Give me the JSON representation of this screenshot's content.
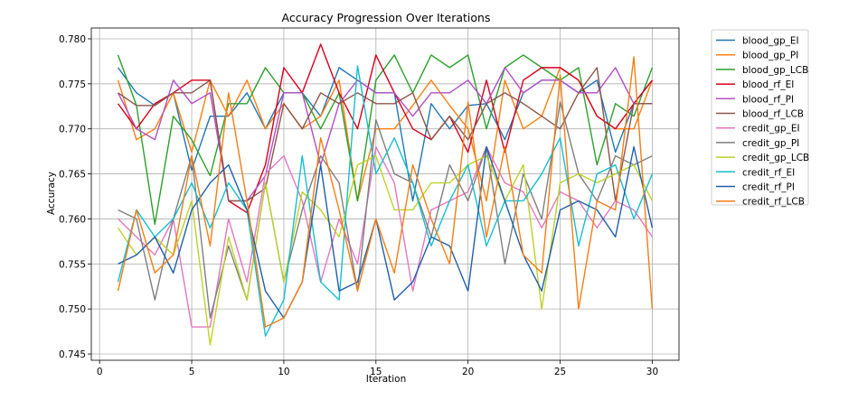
{
  "chart_data": {
    "type": "line",
    "title": "Accuracy Progression Over Iterations",
    "xlabel": "Iteration",
    "ylabel": "Accuracy",
    "xlim": [
      -0.45,
      31.45
    ],
    "ylim": [
      0.7443,
      0.7812
    ],
    "xticks": [
      0,
      5,
      10,
      15,
      20,
      25,
      30
    ],
    "yticks": [
      0.745,
      0.75,
      0.755,
      0.76,
      0.765,
      0.77,
      0.775,
      0.78
    ],
    "grid": true,
    "legend_position": "outside-right",
    "x": [
      1,
      2,
      3,
      4,
      5,
      6,
      7,
      8,
      9,
      10,
      11,
      12,
      13,
      14,
      15,
      16,
      17,
      18,
      19,
      20,
      21,
      22,
      23,
      24,
      25,
      26,
      27,
      28,
      29,
      30
    ],
    "series": [
      {
        "name": "blood_gp_EI",
        "color": "#1f77b4",
        "values": [
          0.7768,
          0.774,
          0.7726,
          0.774,
          0.7654,
          0.7714,
          0.7714,
          0.774,
          0.77,
          0.774,
          0.774,
          0.7714,
          0.7768,
          0.7754,
          0.774,
          0.774,
          0.762,
          0.7728,
          0.77,
          0.7726,
          0.7728,
          0.7688,
          0.774,
          0.7754,
          0.7754,
          0.774,
          0.7754,
          0.7674,
          0.7728,
          0.7754
        ]
      },
      {
        "name": "blood_gp_PI",
        "color": "#ff7f0e",
        "values": [
          0.7754,
          0.7688,
          0.77,
          0.774,
          0.7674,
          0.7754,
          0.7714,
          0.7754,
          0.77,
          0.7728,
          0.77,
          0.7714,
          0.7754,
          0.762,
          0.77,
          0.77,
          0.7726,
          0.7754,
          0.7726,
          0.77,
          0.762,
          0.7754,
          0.77,
          0.7714,
          0.7768,
          0.7754,
          0.7714,
          0.77,
          0.77,
          0.7754
        ]
      },
      {
        "name": "blood_gp_LCB",
        "color": "#2ca02c",
        "values": [
          0.7782,
          0.7726,
          0.7594,
          0.7714,
          0.7688,
          0.7648,
          0.7728,
          0.7728,
          0.7768,
          0.774,
          0.774,
          0.77,
          0.774,
          0.762,
          0.7754,
          0.7782,
          0.774,
          0.7782,
          0.7768,
          0.7782,
          0.77,
          0.7768,
          0.7782,
          0.7768,
          0.7754,
          0.7768,
          0.766,
          0.7728,
          0.7714,
          0.7768
        ]
      },
      {
        "name": "blood_rf_EI",
        "color": "#d6001c",
        "values": [
          0.7728,
          0.77,
          0.7728,
          0.774,
          0.7754,
          0.7754,
          0.762,
          0.7607,
          0.766,
          0.7768,
          0.774,
          0.7794,
          0.774,
          0.77,
          0.7782,
          0.774,
          0.77,
          0.7688,
          0.7714,
          0.7674,
          0.7754,
          0.7674,
          0.7754,
          0.7768,
          0.7768,
          0.7754,
          0.7714,
          0.77,
          0.7728,
          0.7754
        ]
      },
      {
        "name": "blood_rf_PI",
        "color": "#b14fc5",
        "values": [
          0.774,
          0.77,
          0.7688,
          0.7754,
          0.7728,
          0.774,
          0.762,
          0.762,
          0.7648,
          0.774,
          0.774,
          0.766,
          0.7728,
          0.7754,
          0.774,
          0.774,
          0.7714,
          0.774,
          0.774,
          0.7754,
          0.7728,
          0.7768,
          0.774,
          0.7754,
          0.7754,
          0.774,
          0.774,
          0.7768,
          0.7728,
          0.7728
        ]
      },
      {
        "name": "blood_rf_LCB",
        "color": "#8c564b",
        "values": [
          0.774,
          0.7726,
          0.7726,
          0.774,
          0.774,
          0.7754,
          0.762,
          0.762,
          0.7634,
          0.7728,
          0.77,
          0.774,
          0.7728,
          0.774,
          0.7728,
          0.7728,
          0.774,
          0.7688,
          0.7714,
          0.7688,
          0.7728,
          0.774,
          0.7728,
          0.7714,
          0.77,
          0.774,
          0.7768,
          0.762,
          0.7728,
          0.7728
        ]
      },
      {
        "name": "credit_gp_EI",
        "color": "#e377c2",
        "values": [
          0.76,
          0.758,
          0.756,
          0.76,
          0.748,
          0.748,
          0.76,
          0.753,
          0.765,
          0.767,
          0.762,
          0.753,
          0.76,
          0.755,
          0.768,
          0.764,
          0.752,
          0.761,
          0.762,
          0.763,
          0.768,
          0.764,
          0.763,
          0.759,
          0.763,
          0.762,
          0.759,
          0.762,
          0.761,
          0.758
        ]
      },
      {
        "name": "credit_gp_PI",
        "color": "#7f7f7f",
        "values": [
          0.761,
          0.76,
          0.751,
          0.76,
          0.767,
          0.749,
          0.757,
          0.751,
          0.764,
          0.753,
          0.761,
          0.767,
          0.764,
          0.752,
          0.771,
          0.765,
          0.764,
          0.758,
          0.766,
          0.762,
          0.768,
          0.755,
          0.765,
          0.76,
          0.773,
          0.765,
          0.762,
          0.767,
          0.766,
          0.767
        ]
      },
      {
        "name": "credit_gp_LCB",
        "color": "#bcd22a",
        "values": [
          0.759,
          0.756,
          0.758,
          0.756,
          0.762,
          0.746,
          0.758,
          0.751,
          0.764,
          0.753,
          0.763,
          0.761,
          0.758,
          0.766,
          0.767,
          0.761,
          0.761,
          0.764,
          0.764,
          0.766,
          0.767,
          0.762,
          0.766,
          0.75,
          0.764,
          0.765,
          0.764,
          0.765,
          0.766,
          0.762
        ]
      },
      {
        "name": "credit_rf_EI",
        "color": "#17becf",
        "values": [
          0.753,
          0.761,
          0.758,
          0.76,
          0.764,
          0.759,
          0.764,
          0.761,
          0.747,
          0.751,
          0.767,
          0.753,
          0.751,
          0.777,
          0.765,
          0.769,
          0.764,
          0.757,
          0.762,
          0.766,
          0.757,
          0.762,
          0.762,
          0.765,
          0.769,
          0.757,
          0.765,
          0.766,
          0.76,
          0.765
        ]
      },
      {
        "name": "credit_rf_PI",
        "color": "#1f5fa8",
        "values": [
          0.755,
          0.756,
          0.758,
          0.754,
          0.761,
          0.764,
          0.766,
          0.761,
          0.752,
          0.749,
          0.753,
          0.766,
          0.752,
          0.753,
          0.76,
          0.751,
          0.753,
          0.758,
          0.757,
          0.752,
          0.768,
          0.762,
          0.756,
          0.752,
          0.761,
          0.762,
          0.761,
          0.758,
          0.768,
          0.759
        ]
      },
      {
        "name": "credit_rf_LCB",
        "color": "#f47e16",
        "values": [
          0.752,
          0.761,
          0.754,
          0.756,
          0.767,
          0.757,
          0.774,
          0.762,
          0.748,
          0.749,
          0.753,
          0.769,
          0.761,
          0.752,
          0.76,
          0.754,
          0.766,
          0.76,
          0.755,
          0.773,
          0.758,
          0.768,
          0.756,
          0.754,
          0.776,
          0.75,
          0.762,
          0.761,
          0.778,
          0.75
        ]
      }
    ]
  }
}
